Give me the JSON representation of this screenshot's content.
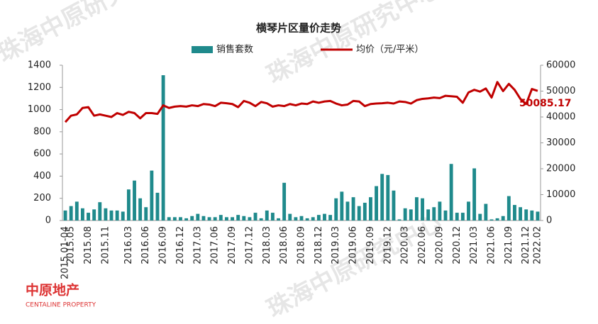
{
  "chart_data": {
    "type": "bar",
    "title": "横琴片区量价走势",
    "categories": [
      "2015.01-04",
      "2015.05",
      null,
      null,
      "2015.08",
      null,
      null,
      "2015.11",
      null,
      null,
      null,
      "2016.03",
      null,
      null,
      "2016.06",
      null,
      null,
      "2016.09",
      null,
      null,
      "2016.12",
      null,
      null,
      "2017.03",
      null,
      null,
      "2017.06",
      null,
      null,
      "2017.09",
      null,
      null,
      "2017.12",
      null,
      null,
      "2018.03",
      null,
      null,
      "2018.06",
      null,
      null,
      "2018.09",
      null,
      null,
      "2018.12",
      null,
      null,
      "2019.03",
      null,
      null,
      "2019.06",
      null,
      null,
      "2019.09",
      null,
      null,
      "2019.12",
      null,
      null,
      "2020.03",
      null,
      null,
      "2020.06",
      null,
      null,
      "2020.09",
      null,
      null,
      "2020.12",
      null,
      null,
      "2021.03",
      null,
      null,
      "2021.06",
      null,
      null,
      "2021.09",
      null,
      null,
      "2021.12",
      null,
      "2022.02"
    ],
    "series": [
      {
        "name": "销售套数",
        "type": "bar",
        "color": "#1f8a8c",
        "values": [
          90,
          130,
          170,
          110,
          70,
          100,
          165,
          110,
          90,
          90,
          80,
          280,
          360,
          200,
          120,
          450,
          250,
          1310,
          30,
          30,
          30,
          20,
          40,
          60,
          40,
          30,
          30,
          50,
          30,
          30,
          50,
          40,
          30,
          70,
          20,
          90,
          70,
          20,
          340,
          60,
          30,
          40,
          20,
          30,
          50,
          60,
          50,
          200,
          260,
          170,
          210,
          130,
          160,
          210,
          310,
          420,
          410,
          270,
          10,
          110,
          100,
          210,
          200,
          100,
          120,
          170,
          90,
          510,
          70,
          70,
          170,
          470,
          60,
          150,
          10,
          20,
          40,
          220,
          140,
          120,
          100,
          90,
          80
        ]
      },
      {
        "name": "均价（元/平米）",
        "type": "line",
        "axis": "y2",
        "color": "#c00000",
        "values": [
          38000,
          40500,
          41000,
          43500,
          43800,
          40500,
          41000,
          40500,
          40000,
          41500,
          40800,
          42000,
          41500,
          39500,
          41500,
          41500,
          41200,
          44500,
          43500,
          44000,
          44200,
          44000,
          44500,
          44200,
          45000,
          44800,
          44200,
          45500,
          45300,
          45000,
          43800,
          46200,
          45500,
          44200,
          45800,
          45300,
          44000,
          44500,
          44200,
          45000,
          44500,
          45200,
          45000,
          46000,
          45500,
          46000,
          46200,
          45200,
          44500,
          44800,
          46200,
          46000,
          44200,
          45000,
          45200,
          45300,
          45500,
          45200,
          46000,
          45800,
          45200,
          46500,
          47000,
          47200,
          47500,
          47300,
          48200,
          48000,
          47800,
          45500,
          49500,
          50500,
          49800,
          51000,
          47500,
          53500,
          50000,
          52800,
          50500,
          47000,
          45000,
          50800,
          50085.17
        ]
      }
    ],
    "ylim": [
      0,
      1400
    ],
    "yticks": [
      0,
      200,
      400,
      600,
      800,
      1000,
      1200,
      1400
    ],
    "y2lim": [
      0,
      60000
    ],
    "y2ticks": [
      0,
      10000,
      20000,
      30000,
      40000,
      50000,
      60000
    ],
    "legend": "top"
  },
  "watermark": "珠海中原研究中心",
  "logo": "中原地产",
  "logo_en": "CENTALINE PROPERTY"
}
